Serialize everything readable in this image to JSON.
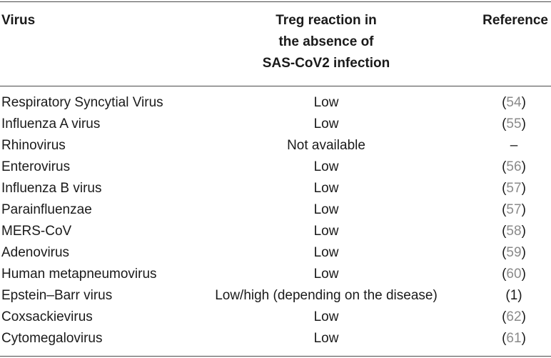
{
  "header": {
    "virus": "Virus",
    "treg_line1": "Treg reaction in",
    "treg_line2": "the absence of",
    "treg_line3": "SAS-CoV2 infection",
    "reference": "Reference"
  },
  "rows": [
    {
      "virus": "Respiratory Syncytial Virus",
      "treg": "Low",
      "ref_open": "(",
      "ref_num": "54",
      "ref_close": ")"
    },
    {
      "virus": "Influenza A virus",
      "treg": "Low",
      "ref_open": "(",
      "ref_num": "55",
      "ref_close": ")"
    },
    {
      "virus": "Rhinovirus",
      "treg": "Not available",
      "ref_open": "",
      "ref_num": "",
      "ref_close": "–"
    },
    {
      "virus": "Enterovirus",
      "treg": "Low",
      "ref_open": "(",
      "ref_num": "56",
      "ref_close": ")"
    },
    {
      "virus": "Influenza B virus",
      "treg": "Low",
      "ref_open": "(",
      "ref_num": "57",
      "ref_close": ")"
    },
    {
      "virus": "Parainfluenzae",
      "treg": "Low",
      "ref_open": "(",
      "ref_num": "57",
      "ref_close": ")"
    },
    {
      "virus": "MERS-CoV",
      "treg": "Low",
      "ref_open": "(",
      "ref_num": "58",
      "ref_close": ")"
    },
    {
      "virus": "Adenovirus",
      "treg": "Low",
      "ref_open": "(",
      "ref_num": "59",
      "ref_close": ")"
    },
    {
      "virus": "Human metapneumovirus",
      "treg": "Low",
      "ref_open": "(",
      "ref_num": "60",
      "ref_close": ")"
    },
    {
      "virus": "Epstein–Barr virus",
      "treg": "Low/high (depending on the disease)",
      "ref_open": "(",
      "ref_num": "1",
      "ref_close": ")"
    },
    {
      "virus": "Coxsackievirus",
      "treg": "Low",
      "ref_open": "(",
      "ref_num": "62",
      "ref_close": ")"
    },
    {
      "virus": "Cytomegalovirus",
      "treg": "Low",
      "ref_open": "(",
      "ref_num": "61",
      "ref_close": ")"
    }
  ],
  "colors": {
    "text": "#1a1a1a",
    "reference_link": "#8a8a8a",
    "rule": "#4a4a4a"
  }
}
